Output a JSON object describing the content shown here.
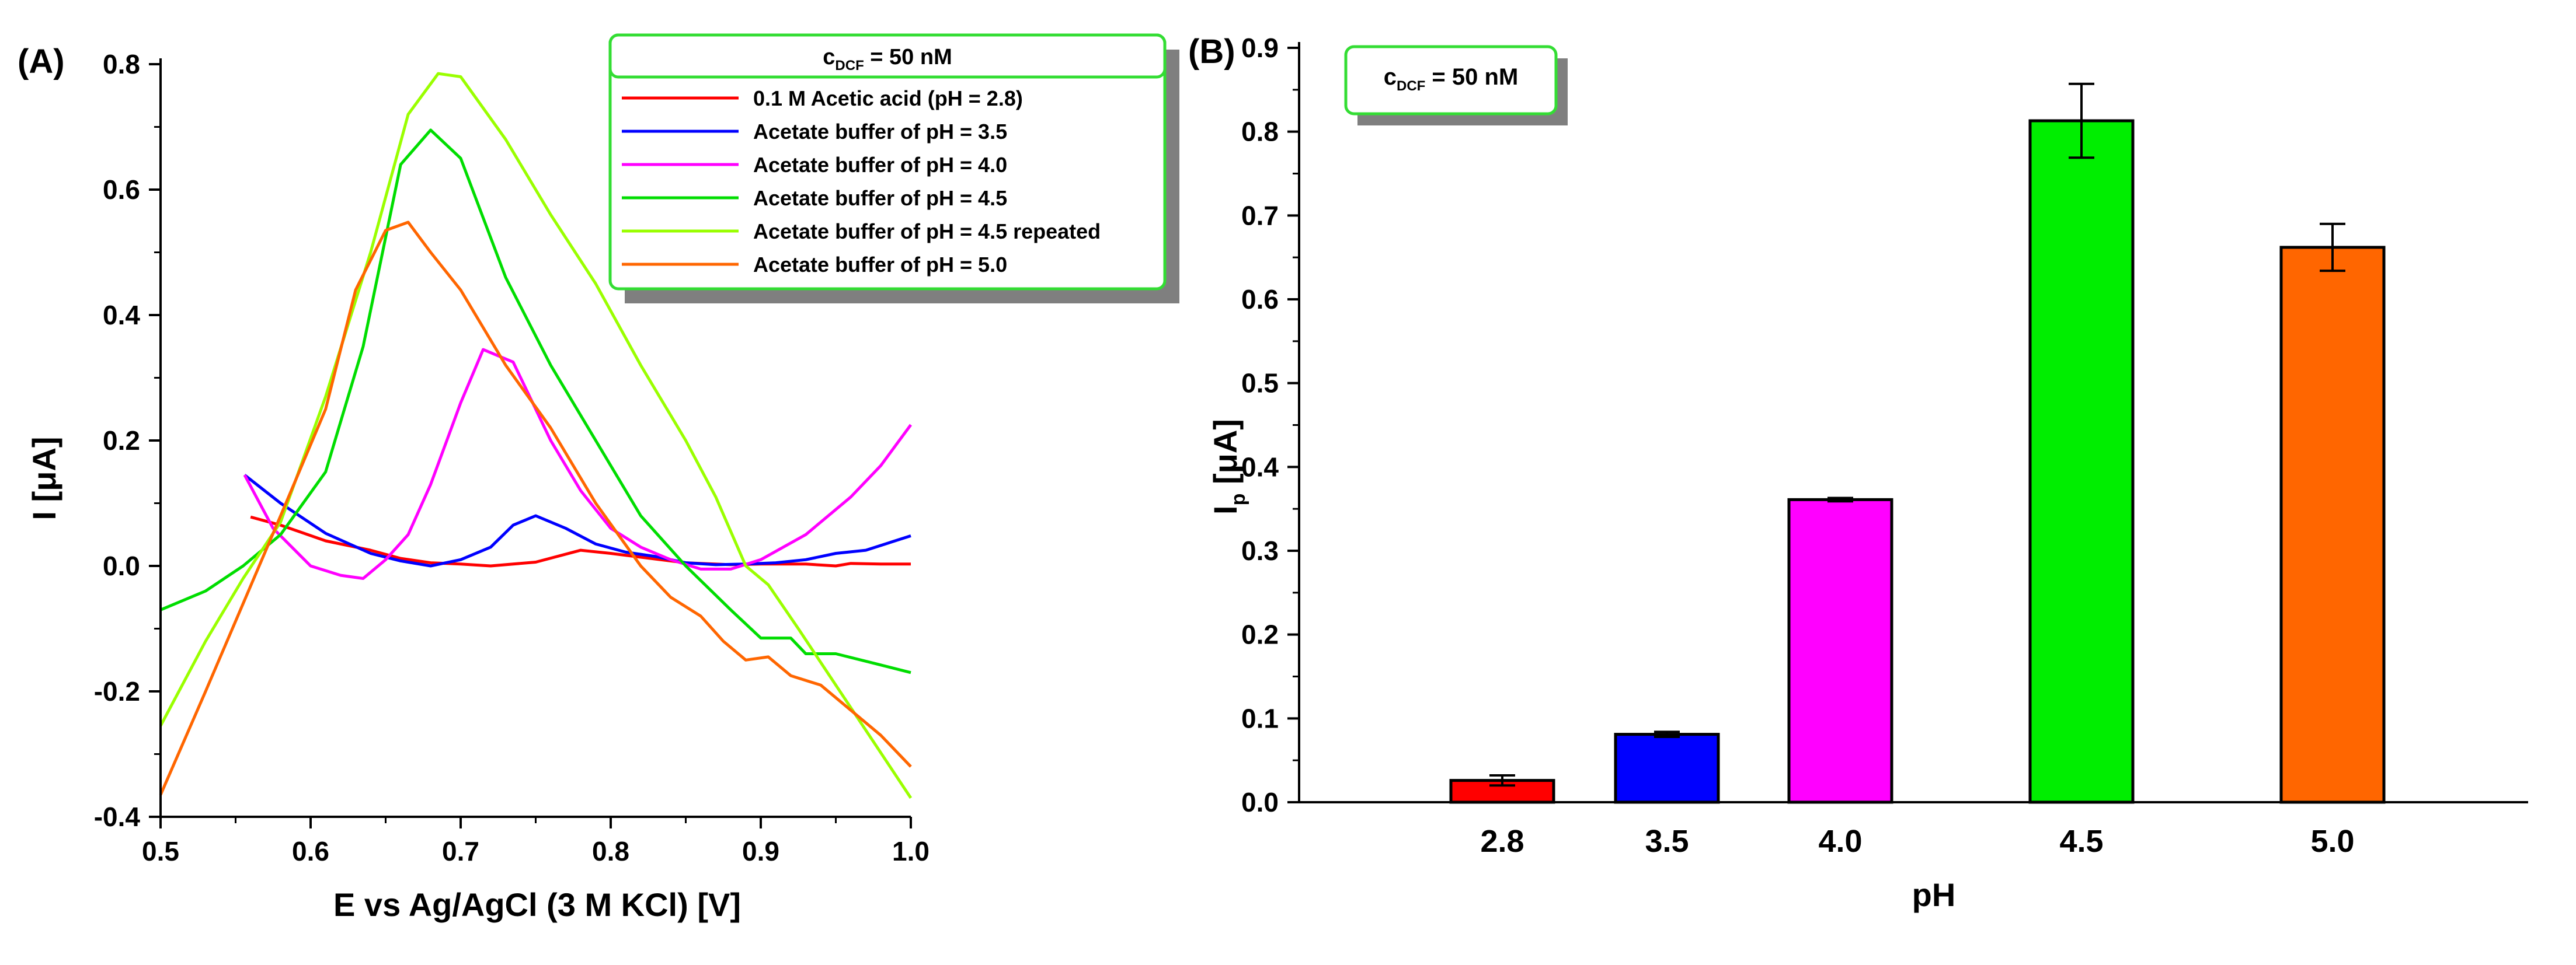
{
  "chart_data": [
    {
      "panel_label": "(A)",
      "type": "line",
      "xlabel": "E vs Ag/AgCl (3 M KCl) [V]",
      "ylabel": "I [μA]",
      "xlim": [
        0.5,
        1.0
      ],
      "ylim": [
        -0.4,
        0.8
      ],
      "xticks": [
        "0.5",
        "0.6",
        "0.7",
        "0.8",
        "0.9",
        "1.0"
      ],
      "yticks": [
        "-0.4",
        "-0.2",
        "0.0",
        "0.2",
        "0.4",
        "0.6",
        "0.8"
      ],
      "grid": false,
      "legend_position": "top-right",
      "legend_title": {
        "main": "c",
        "sub": "DCF",
        "rest": " = 50 nM"
      },
      "series": [
        {
          "name": "0.1 M Acetic acid (pH = 2.8)",
          "color": "#ff0000",
          "x": [
            0.56,
            0.58,
            0.61,
            0.64,
            0.66,
            0.68,
            0.7,
            0.72,
            0.75,
            0.78,
            0.8,
            0.82,
            0.85,
            0.88,
            0.9,
            0.93,
            0.95,
            0.96,
            0.98,
            1.0
          ],
          "y": [
            0.078,
            0.065,
            0.04,
            0.025,
            0.012,
            0.005,
            0.003,
            0.0,
            0.006,
            0.025,
            0.02,
            0.014,
            0.005,
            0.002,
            0.003,
            0.003,
            0.0,
            0.004,
            0.003,
            0.003
          ]
        },
        {
          "name": "Acetate buffer of pH = 3.5",
          "color": "#0000ff",
          "x": [
            0.556,
            0.58,
            0.61,
            0.64,
            0.66,
            0.68,
            0.7,
            0.72,
            0.735,
            0.75,
            0.77,
            0.79,
            0.81,
            0.83,
            0.85,
            0.87,
            0.89,
            0.91,
            0.93,
            0.95,
            0.97,
            1.0
          ],
          "y": [
            0.145,
            0.1,
            0.052,
            0.02,
            0.008,
            0.0,
            0.01,
            0.03,
            0.065,
            0.08,
            0.06,
            0.035,
            0.022,
            0.015,
            0.005,
            0.002,
            0.003,
            0.005,
            0.01,
            0.02,
            0.025,
            0.048
          ]
        },
        {
          "name": "Acetate buffer of pH = 4.0",
          "color": "#ff00ff",
          "x": [
            0.556,
            0.575,
            0.6,
            0.62,
            0.635,
            0.65,
            0.665,
            0.68,
            0.7,
            0.715,
            0.735,
            0.76,
            0.78,
            0.8,
            0.82,
            0.84,
            0.86,
            0.88,
            0.9,
            0.93,
            0.96,
            0.98,
            1.0
          ],
          "y": [
            0.145,
            0.06,
            0.0,
            -0.015,
            -0.02,
            0.01,
            0.05,
            0.13,
            0.26,
            0.345,
            0.325,
            0.2,
            0.12,
            0.06,
            0.03,
            0.01,
            -0.005,
            -0.005,
            0.01,
            0.05,
            0.11,
            0.16,
            0.225
          ]
        },
        {
          "name": "Acetate buffer of pH = 4.5",
          "color": "#00dd00",
          "x": [
            0.5,
            0.53,
            0.555,
            0.58,
            0.61,
            0.635,
            0.66,
            0.68,
            0.7,
            0.73,
            0.76,
            0.79,
            0.82,
            0.85,
            0.88,
            0.9,
            0.92,
            0.93,
            0.95,
            0.975,
            1.0
          ],
          "y": [
            -0.07,
            -0.04,
            0.0,
            0.05,
            0.15,
            0.35,
            0.64,
            0.695,
            0.65,
            0.46,
            0.32,
            0.2,
            0.08,
            0.0,
            -0.07,
            -0.115,
            -0.115,
            -0.14,
            -0.14,
            -0.155,
            -0.17
          ]
        },
        {
          "name": "Acetate buffer of pH = 4.5 repeated",
          "color": "#9aff00",
          "x": [
            0.5,
            0.53,
            0.555,
            0.58,
            0.61,
            0.64,
            0.665,
            0.685,
            0.7,
            0.73,
            0.76,
            0.79,
            0.82,
            0.85,
            0.87,
            0.89,
            0.905,
            0.925,
            0.95,
            0.975,
            1.0
          ],
          "y": [
            -0.255,
            -0.12,
            -0.02,
            0.07,
            0.27,
            0.5,
            0.72,
            0.785,
            0.78,
            0.68,
            0.56,
            0.45,
            0.32,
            0.2,
            0.11,
            0.0,
            -0.03,
            -0.1,
            -0.19,
            -0.28,
            -0.37
          ]
        },
        {
          "name": "Acetate buffer of pH = 5.0",
          "color": "#ff6600",
          "x": [
            0.5,
            0.53,
            0.555,
            0.58,
            0.61,
            0.63,
            0.65,
            0.665,
            0.68,
            0.7,
            0.73,
            0.76,
            0.79,
            0.82,
            0.84,
            0.86,
            0.875,
            0.89,
            0.905,
            0.92,
            0.94,
            0.96,
            0.98,
            1.0
          ],
          "y": [
            -0.365,
            -0.2,
            -0.06,
            0.08,
            0.25,
            0.44,
            0.535,
            0.548,
            0.5,
            0.44,
            0.32,
            0.22,
            0.1,
            0.0,
            -0.05,
            -0.08,
            -0.12,
            -0.15,
            -0.145,
            -0.175,
            -0.19,
            -0.23,
            -0.27,
            -0.32
          ]
        }
      ]
    },
    {
      "panel_label": "(B)",
      "type": "bar",
      "xlabel": "pH",
      "ylabel": {
        "main": "I",
        "sub": "p",
        "rest": " [μA]"
      },
      "ylim": [
        0.0,
        0.9
      ],
      "yticks": [
        "0.0",
        "0.1",
        "0.2",
        "0.3",
        "0.4",
        "0.5",
        "0.6",
        "0.7",
        "0.8",
        "0.9"
      ],
      "categories": [
        "2.8",
        "3.5",
        "4.0",
        "4.5",
        "5.0"
      ],
      "values": [
        0.026,
        0.081,
        0.361,
        0.813,
        0.662
      ],
      "errors": [
        0.006,
        0.003,
        0.002,
        0.044,
        0.028
      ],
      "colors": [
        "#ff0000",
        "#0000ff",
        "#ff00ff",
        "#00ee00",
        "#ff6600"
      ],
      "grid": false,
      "annotation": {
        "main": "c",
        "sub": "DCF",
        "rest": " = 50 nM"
      }
    }
  ]
}
